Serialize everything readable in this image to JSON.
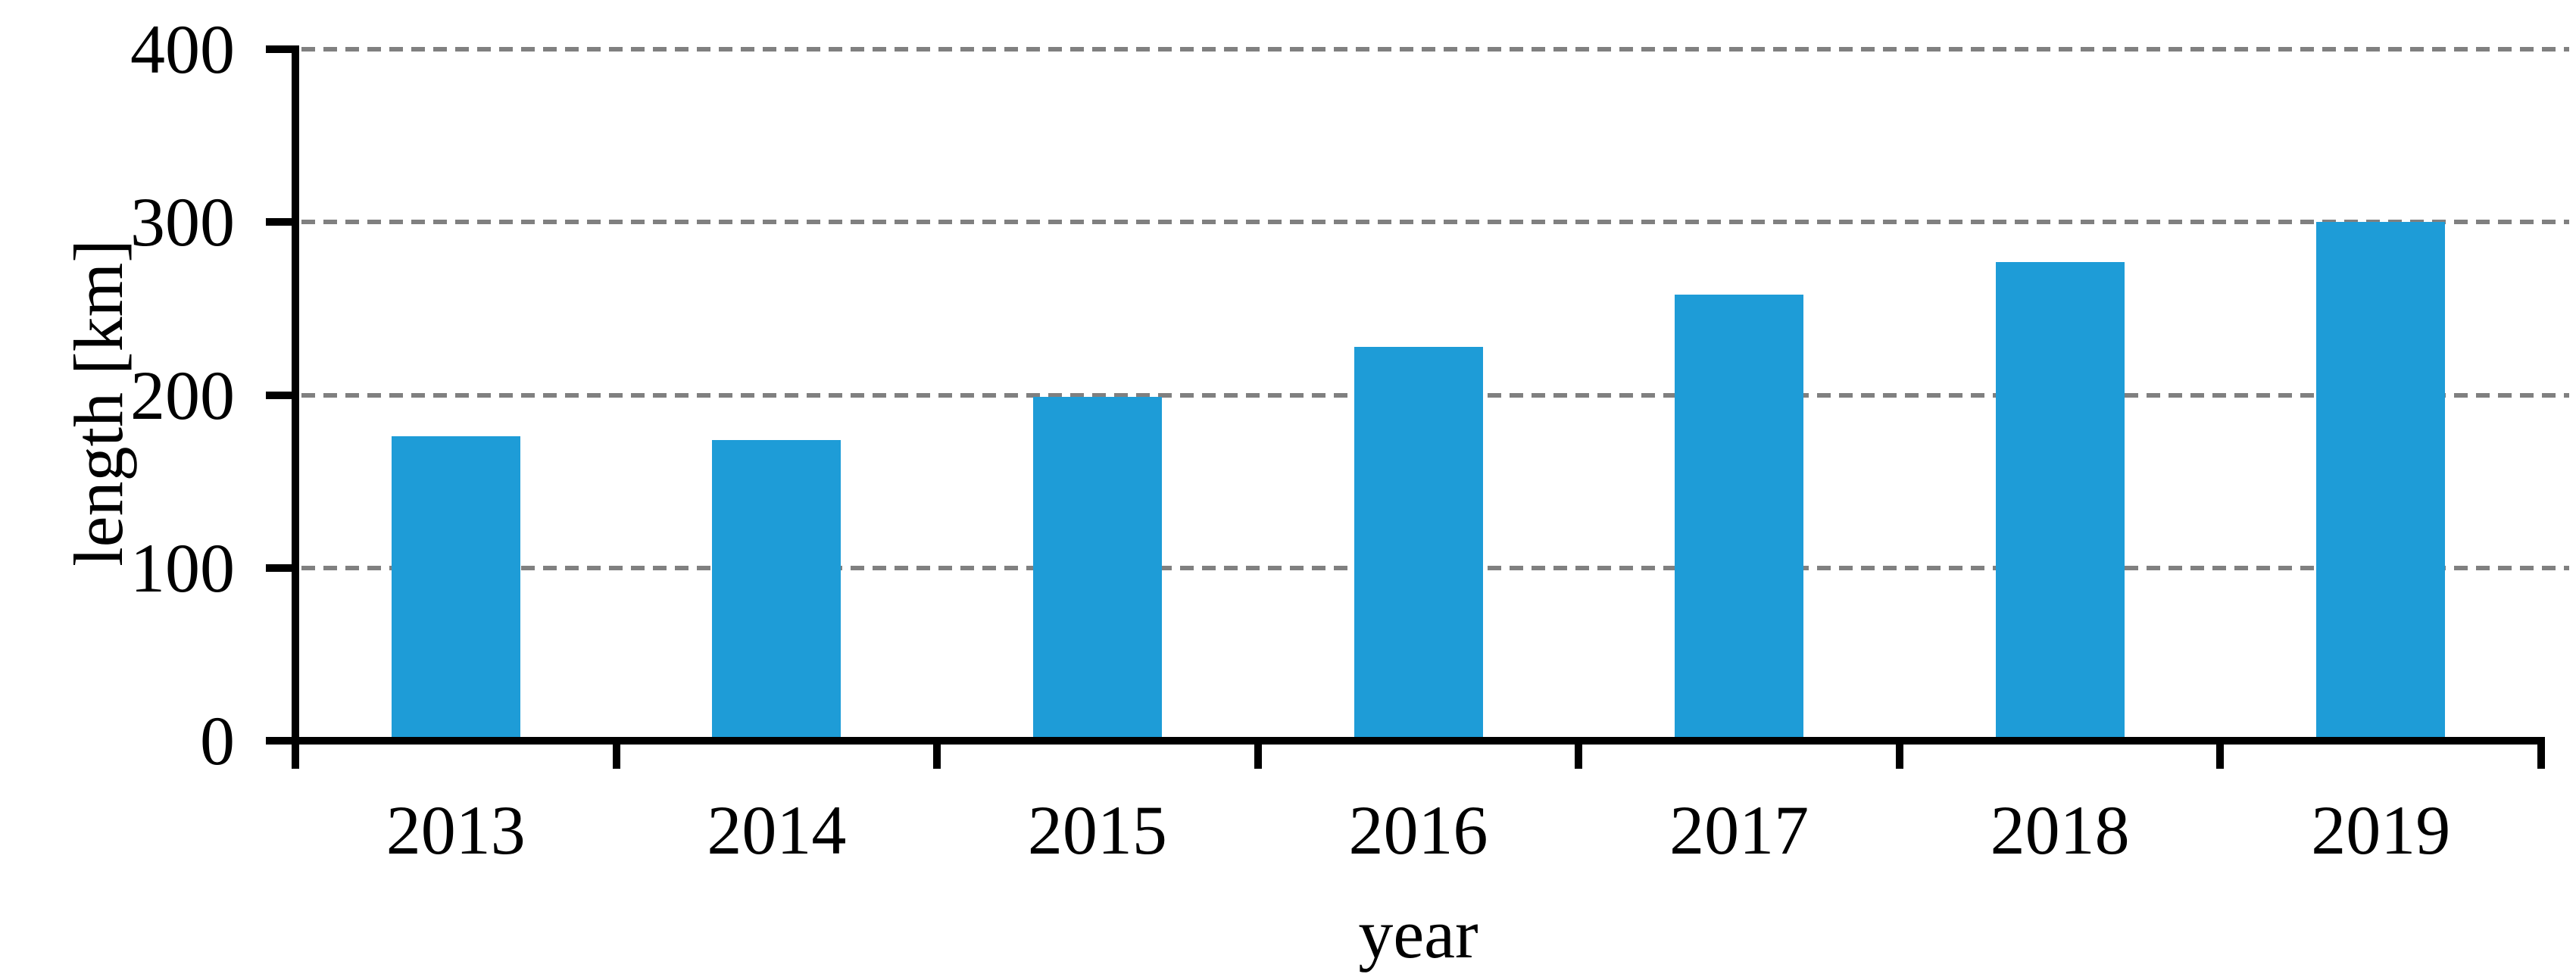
{
  "figure": {
    "background_color": "#FFFFFF",
    "bar_color": "#1E9CD7",
    "gridline_color": "#808080",
    "axis_color": "#000000",
    "text_color": "#000000"
  },
  "chart_data": {
    "type": "bar",
    "title": "",
    "categories": [
      "2013",
      "2014",
      "2015",
      "2016",
      "2017",
      "2018",
      "2019"
    ],
    "values": [
      176,
      174,
      199,
      228,
      258,
      277,
      300
    ],
    "xlabel": "year",
    "ylabel": "length [km]",
    "ylim": [
      0,
      400
    ],
    "yticks": [
      0,
      100,
      200,
      300,
      400
    ],
    "grid": "horizontal-dashed",
    "legend_position": "none",
    "bars_per_category": 1
  }
}
